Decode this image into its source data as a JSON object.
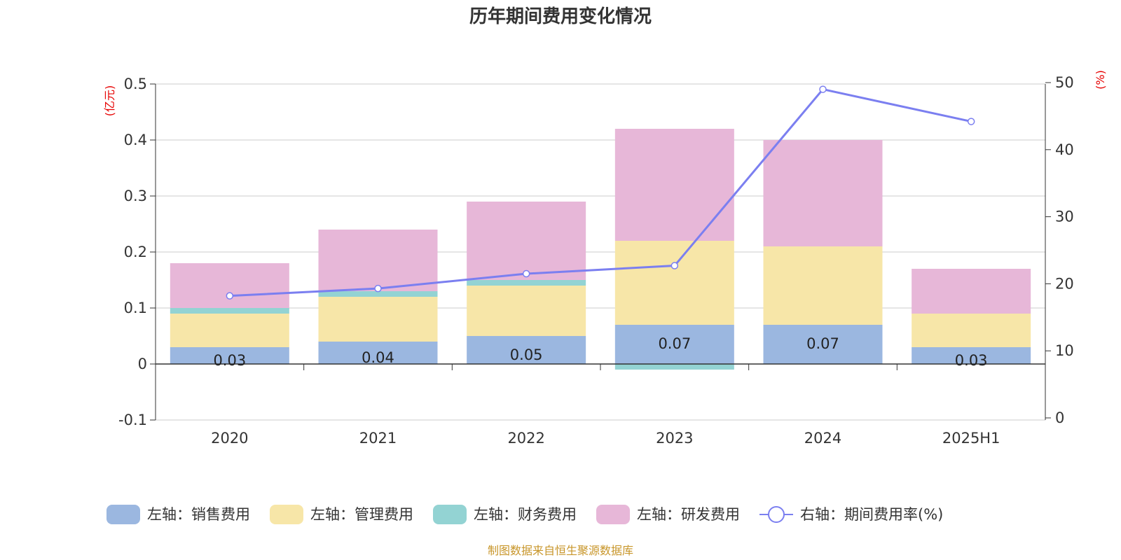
{
  "chart_data": {
    "type": "bar",
    "title": "历年期间费用变化情况",
    "categories": [
      "2020",
      "2021",
      "2022",
      "2023",
      "2024",
      "2025H1"
    ],
    "y_left": {
      "unit": "(亿元)",
      "ticks": [
        "0.5",
        "0.4",
        "0.3",
        "0.2",
        "0.1",
        "0",
        "-0.1"
      ],
      "ylim": [
        -0.1,
        0.5
      ]
    },
    "y_right": {
      "unit": "(%)",
      "ticks": [
        "50",
        "40",
        "30",
        "20",
        "10",
        "0"
      ],
      "ylim": [
        0,
        50
      ]
    },
    "series": [
      {
        "name": "左轴：销售费用",
        "kind": "bar",
        "axis": "left",
        "color": "#9bb7e0",
        "values": [
          0.03,
          0.04,
          0.05,
          0.07,
          0.07,
          0.03
        ],
        "labels": [
          "0.03",
          "0.04",
          "0.05",
          "0.07",
          "0.07",
          "0.03"
        ]
      },
      {
        "name": "左轴：管理费用",
        "kind": "bar",
        "axis": "left",
        "color": "#f7e6a8",
        "values": [
          0.06,
          0.08,
          0.09,
          0.15,
          0.14,
          0.06
        ]
      },
      {
        "name": "左轴：财务费用",
        "kind": "bar",
        "axis": "left",
        "color": "#93d3d3",
        "values": [
          0.01,
          0.01,
          0.01,
          -0.01,
          0.0,
          0.0
        ]
      },
      {
        "name": "左轴：研发费用",
        "kind": "bar",
        "axis": "left",
        "color": "#e7b7d8",
        "values": [
          0.08,
          0.11,
          0.14,
          0.2,
          0.19,
          0.08
        ]
      },
      {
        "name": "右轴：期间费用率(%)",
        "kind": "line",
        "axis": "right",
        "color": "#7b7ff0",
        "values": [
          18.2,
          19.3,
          21.5,
          22.7,
          49.0,
          44.2
        ]
      }
    ],
    "grid": true,
    "legend_position": "bottom"
  },
  "source_note": "制图数据来自恒生聚源数据库"
}
